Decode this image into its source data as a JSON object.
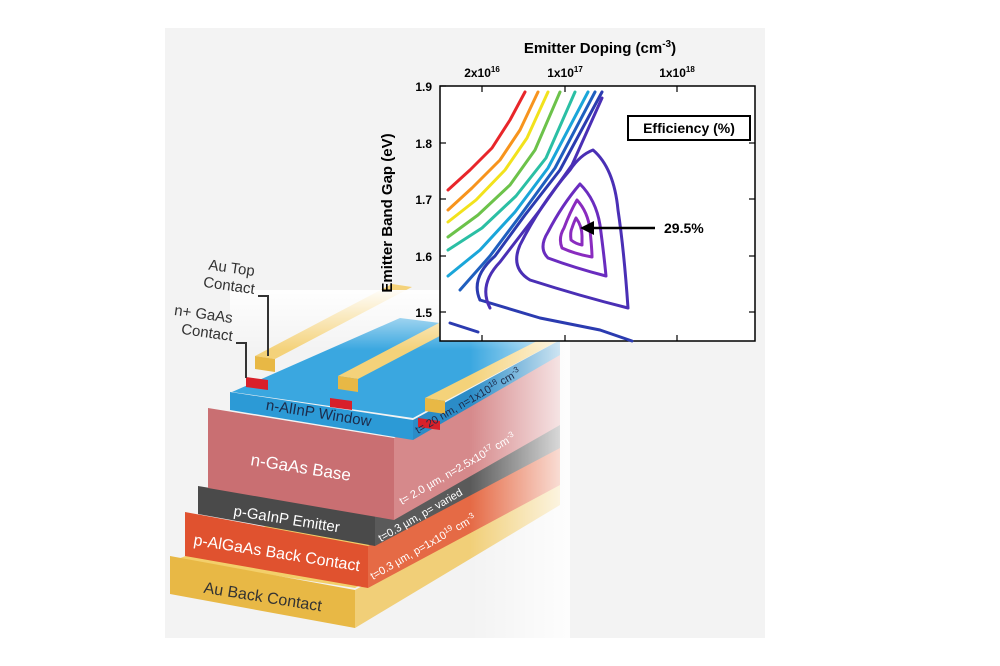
{
  "chart_data": {
    "type": "contour",
    "title": "Efficiency (%)",
    "xlabel": "Emitter Doping (cm",
    "xlabel_sup": "-3",
    "xlabel_end": ")",
    "ylabel": "Emitter Band Gap (eV)",
    "x_scale": "log",
    "ylim": [
      1.45,
      1.9
    ],
    "x_ticks": [
      {
        "label": "2x10",
        "sup": "16",
        "value": 2e+16
      },
      {
        "label": "1x10",
        "sup": "17",
        "value": 1e+17
      },
      {
        "label": "1x10",
        "sup": "18",
        "value": 1e+18
      }
    ],
    "y_ticks": [
      "1.9",
      "1.8",
      "1.7",
      "1.6",
      "1.5"
    ],
    "y_tick_values": [
      1.9,
      1.8,
      1.7,
      1.6,
      1.5
    ],
    "peak": {
      "label": "29.5%",
      "x": 1.2e+17,
      "y": 1.65
    },
    "colors": {
      "red": "#e8262a",
      "orange": "#f7941d",
      "yellow": "#f2e21c",
      "green": "#6cc24a",
      "teal": "#2bbfa4",
      "cyan": "#1aa6d9",
      "blue": "#1f5fbf",
      "deepblue": "#2b3bb0",
      "indigo": "#4a2fb5",
      "violet": "#6a2cbf",
      "purple": "#8a2bbf"
    }
  },
  "device": {
    "labels": {
      "au_top": [
        "Au Top",
        "Contact"
      ],
      "n_gaas_contact": [
        "n+ GaAs",
        "Contact"
      ]
    },
    "layers": [
      {
        "name": "n-AlInP Window",
        "spec": "t= 20 nm, n=1x10",
        "spec_sup": "18",
        "spec_end": " cm",
        "spec_end_sup": "-3",
        "color": "#2c9ad6"
      },
      {
        "name": "n-GaAs Base",
        "spec": "t= 2.0 µm, n=2.5x10",
        "spec_sup": "17",
        "spec_end": " cm",
        "spec_end_sup": "-3",
        "color": "#c96f72"
      },
      {
        "name": "p-GaInP Emitter",
        "spec": "t=0.3 µm, p= varied",
        "spec_sup": "",
        "spec_end": "",
        "spec_end_sup": "",
        "color": "#4a4a4a"
      },
      {
        "name": "p-AlGaAs Back Contact",
        "spec": "t=0.3 µm, p=1x10",
        "spec_sup": "19",
        "spec_end": " cm",
        "spec_end_sup": "-3",
        "color": "#e0522f"
      },
      {
        "name": "Au Back Contact",
        "spec": "",
        "spec_sup": "",
        "spec_end": "",
        "spec_end_sup": "",
        "color": "#e8b845"
      }
    ]
  }
}
